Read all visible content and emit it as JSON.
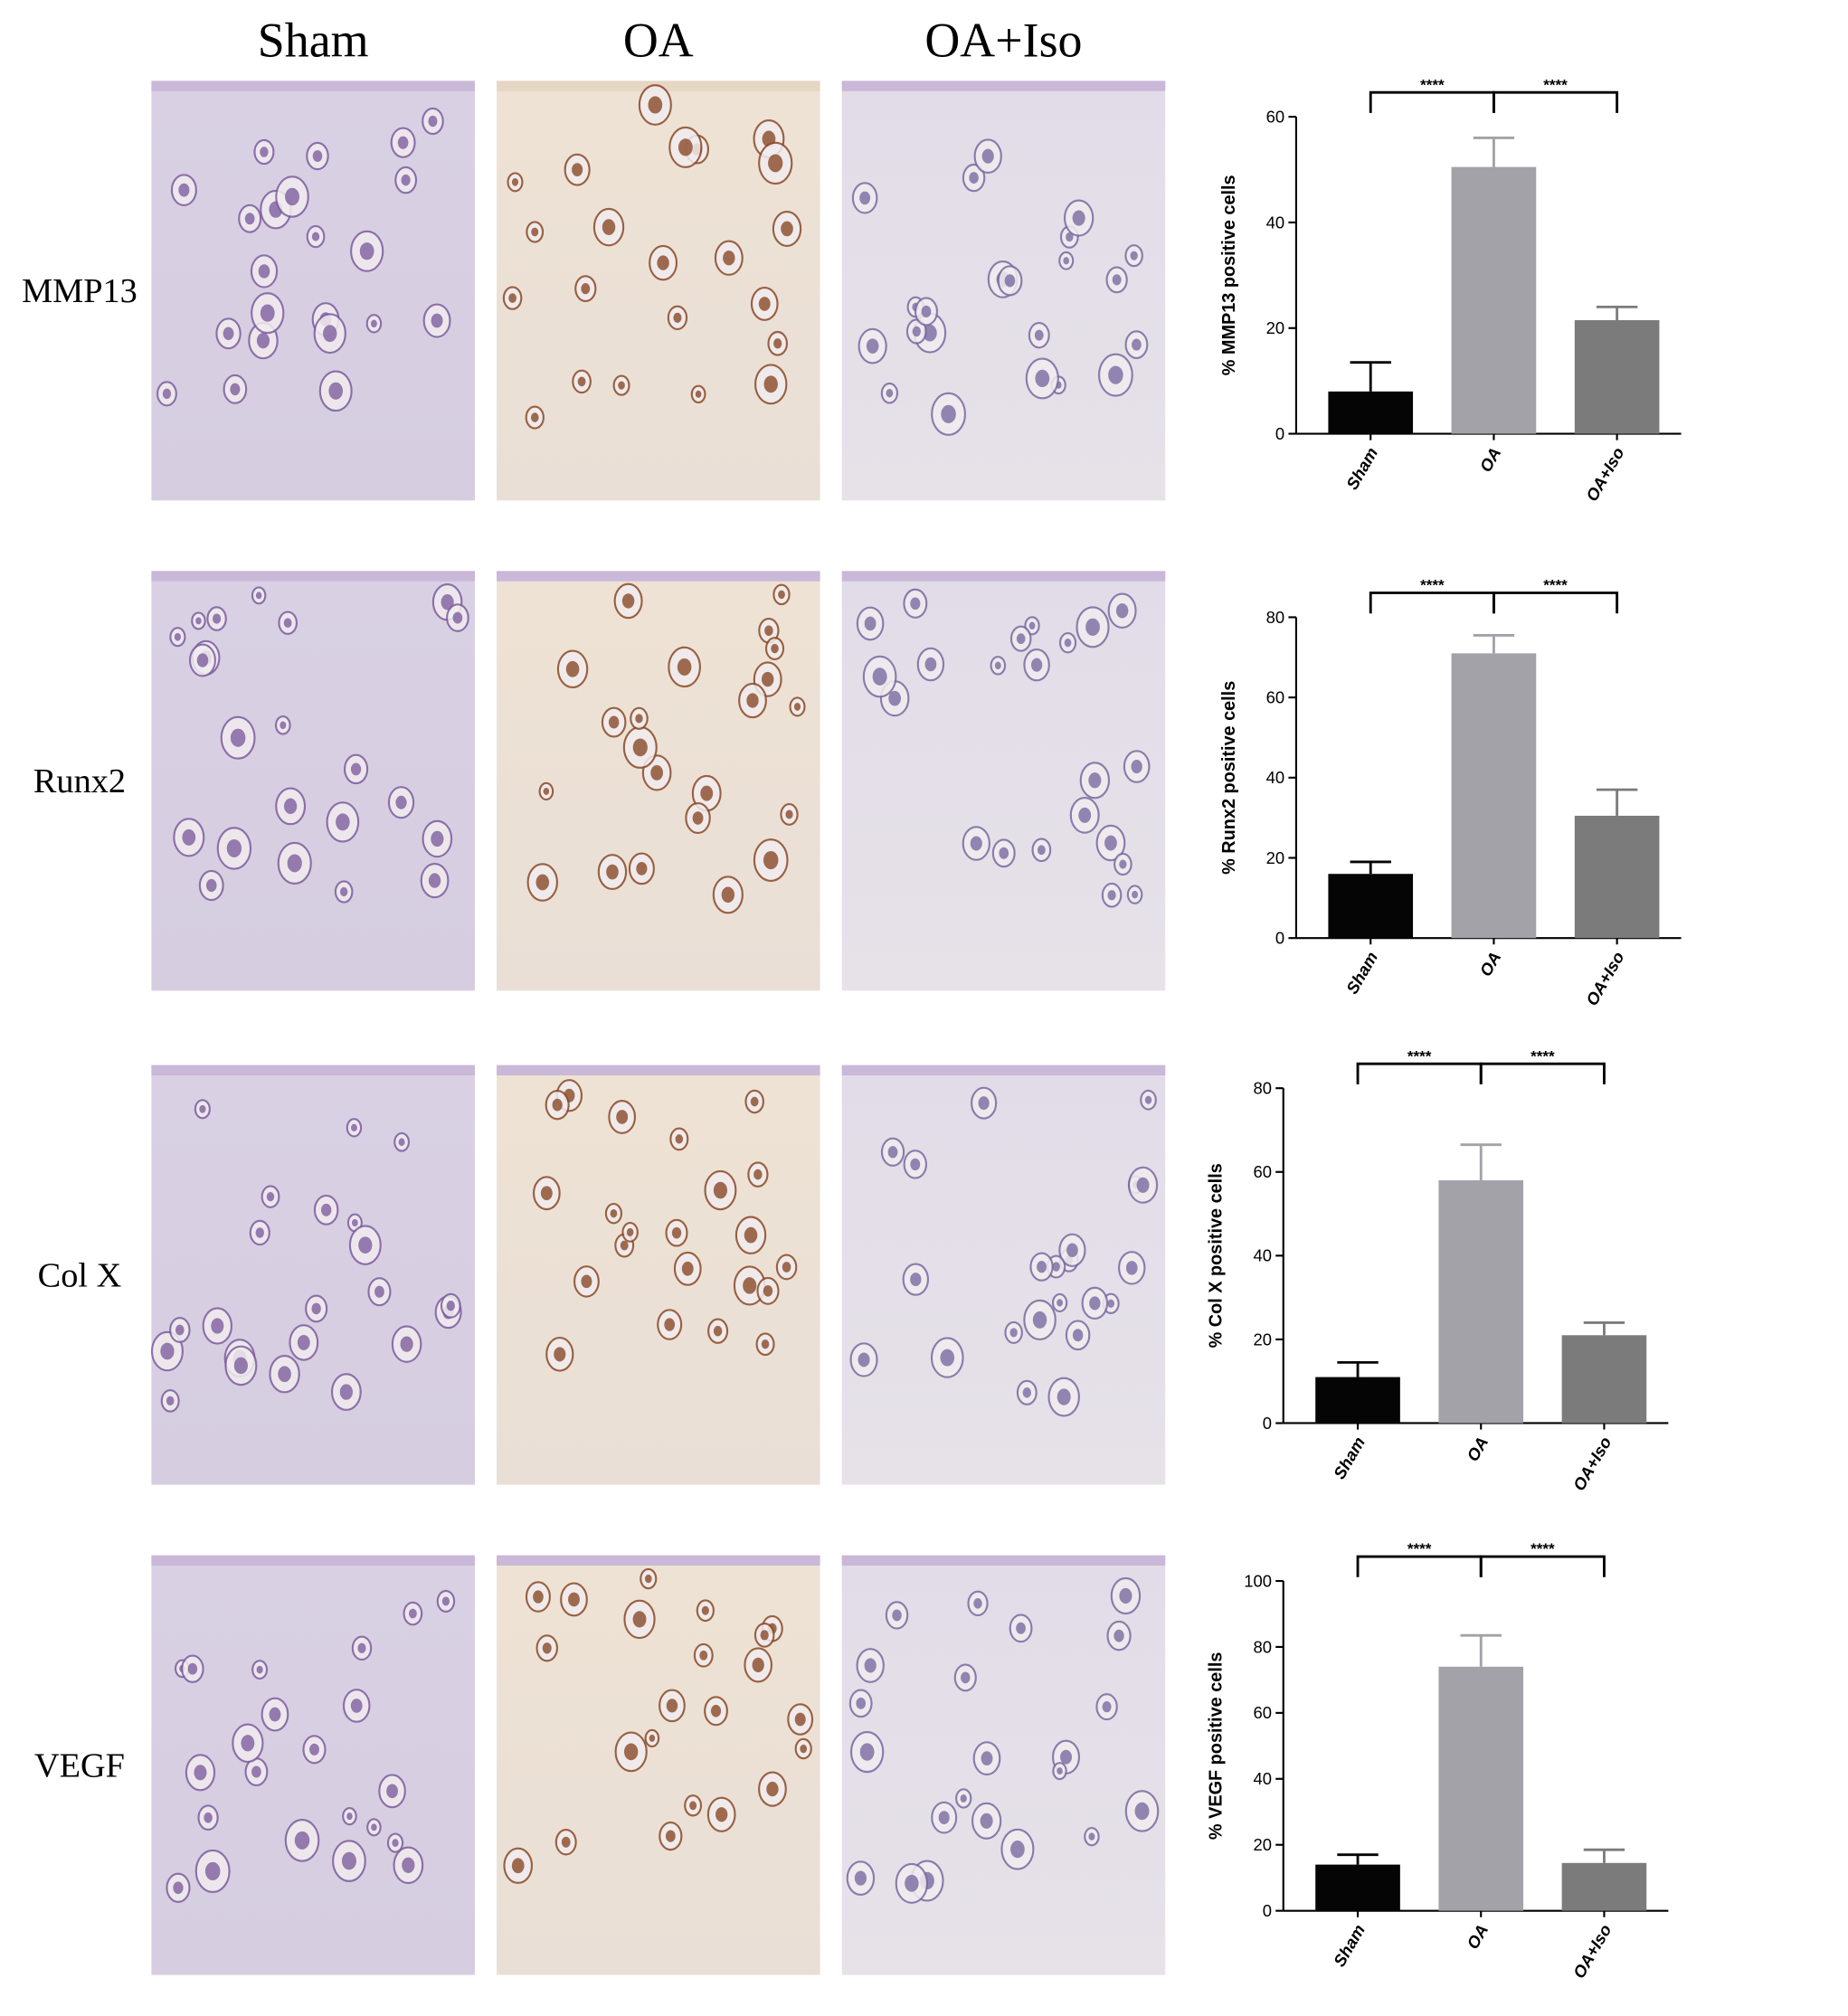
{
  "columns": [
    "Sham",
    "OA",
    "OA+Iso"
  ],
  "rows": [
    "MMP13",
    "Runx2",
    "Col X",
    "VEGF"
  ],
  "chart_data": [
    {
      "type": "bar",
      "ylabel": "% MMP13 positive cells",
      "categories": [
        "Sham",
        "OA",
        "OA+Iso"
      ],
      "values": [
        8,
        50.5,
        21.5
      ],
      "errors": [
        5.5,
        5.5,
        2.5
      ],
      "colors": [
        "#050505",
        "#a2a2a8",
        "#7b7b7b"
      ],
      "ylim": [
        0,
        60
      ],
      "yticks": [
        0,
        20,
        40,
        60
      ],
      "annotations": [
        "****",
        "****"
      ]
    },
    {
      "type": "bar",
      "ylabel": "% Runx2 positive cells",
      "categories": [
        "Sham",
        "OA",
        "OA+Iso"
      ],
      "values": [
        16,
        71,
        30.5
      ],
      "errors": [
        3,
        4.5,
        6.5
      ],
      "colors": [
        "#050505",
        "#a2a2a8",
        "#7b7b7b"
      ],
      "ylim": [
        0,
        80
      ],
      "yticks": [
        0,
        20,
        40,
        60,
        80
      ],
      "annotations": [
        "****",
        "****"
      ]
    },
    {
      "type": "bar",
      "ylabel": "% Col X positive cells",
      "categories": [
        "Sham",
        "OA",
        "OA+Iso"
      ],
      "values": [
        11,
        58,
        21
      ],
      "errors": [
        3.5,
        8.5,
        3
      ],
      "colors": [
        "#050505",
        "#a2a2a8",
        "#7b7b7b"
      ],
      "ylim": [
        0,
        80
      ],
      "yticks": [
        0,
        20,
        40,
        60,
        80
      ],
      "annotations": [
        "****",
        "****"
      ]
    },
    {
      "type": "bar",
      "ylabel": "% VEGF positive cells",
      "categories": [
        "Sham",
        "OA",
        "OA+Iso"
      ],
      "values": [
        14,
        74,
        14.5
      ],
      "errors": [
        3,
        9.5,
        4
      ],
      "colors": [
        "#050505",
        "#a2a2a8",
        "#7b7b7b"
      ],
      "ylim": [
        0,
        100
      ],
      "yticks": [
        0,
        20,
        40,
        60,
        80,
        100
      ],
      "annotations": [
        "****",
        "****"
      ]
    }
  ]
}
